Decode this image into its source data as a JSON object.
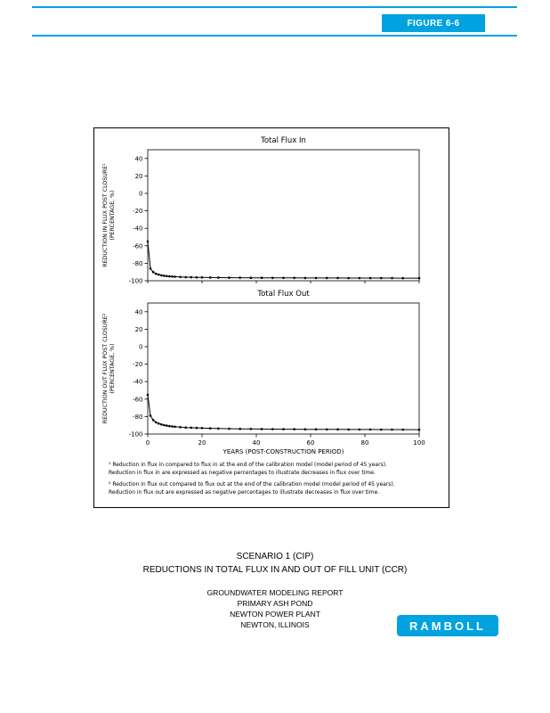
{
  "accent_color": "#00A3E0",
  "header": {
    "figure_label": "FIGURE 6-6"
  },
  "chart_data": [
    {
      "type": "line",
      "title": "Total Flux In",
      "ylabel_lines": [
        "REDUCTION IN FLUX POST CLOSURE¹",
        "(PERCENTAGE, %)"
      ],
      "xlabel": "",
      "xlim": [
        0,
        100
      ],
      "ylim": [
        -100,
        50
      ],
      "xticks": [
        0,
        20,
        40,
        60,
        80,
        100
      ],
      "yticks": [
        40,
        20,
        0,
        -20,
        -40,
        -60,
        -80,
        -100
      ],
      "grid": false,
      "legend": "none",
      "series": [
        {
          "name": "Total Flux In",
          "x": [
            0,
            1,
            2,
            3,
            4,
            5,
            6,
            7,
            8,
            9,
            10,
            12,
            14,
            16,
            18,
            20,
            23,
            26,
            30,
            34,
            38,
            42,
            46,
            50,
            54,
            58,
            62,
            66,
            70,
            74,
            78,
            82,
            86,
            90,
            94,
            100
          ],
          "y": [
            -55,
            -86,
            -90,
            -92,
            -93,
            -93.8,
            -94.3,
            -94.7,
            -95,
            -95.2,
            -95.4,
            -95.7,
            -95.9,
            -96,
            -96.1,
            -96.2,
            -96.3,
            -96.4,
            -96.5,
            -96.5,
            -96.6,
            -96.6,
            -96.7,
            -96.7,
            -96.7,
            -96.8,
            -96.8,
            -96.8,
            -96.8,
            -96.9,
            -96.9,
            -96.9,
            -96.9,
            -96.9,
            -97,
            -97
          ]
        }
      ]
    },
    {
      "type": "line",
      "title": "Total Flux Out",
      "ylabel_lines": [
        "REDUCTION OUT FLUX POST CLOSURE²",
        "(PERCENTAGE, %)"
      ],
      "xlabel": "YEARS (POST-CONSTRUCTION PERIOD)",
      "xlim": [
        0,
        100
      ],
      "ylim": [
        -100,
        50
      ],
      "xticks": [
        0,
        20,
        40,
        60,
        80,
        100
      ],
      "yticks": [
        40,
        20,
        0,
        -20,
        -40,
        -60,
        -80,
        -100
      ],
      "grid": false,
      "legend": "none",
      "series": [
        {
          "name": "Total Flux Out",
          "x": [
            0,
            1,
            2,
            3,
            4,
            5,
            6,
            7,
            8,
            9,
            10,
            12,
            14,
            16,
            18,
            20,
            23,
            26,
            30,
            34,
            38,
            42,
            46,
            50,
            54,
            58,
            62,
            66,
            70,
            74,
            78,
            82,
            86,
            90,
            94,
            100
          ],
          "y": [
            -55,
            -79,
            -84,
            -86.5,
            -88,
            -89,
            -89.8,
            -90.4,
            -90.9,
            -91.3,
            -91.6,
            -92.1,
            -92.5,
            -92.8,
            -93,
            -93.2,
            -93.5,
            -93.7,
            -93.9,
            -94.1,
            -94.2,
            -94.3,
            -94.4,
            -94.5,
            -94.5,
            -94.6,
            -94.6,
            -94.7,
            -94.7,
            -94.8,
            -94.8,
            -94.8,
            -94.9,
            -94.9,
            -94.9,
            -95
          ]
        }
      ]
    }
  ],
  "footnotes": {
    "note1": "¹ Reduction in flux in compared to flux in at the end of the calibration model (model period of 45 years). Reduction in flux in are expressed as negative percentages to illustrate decreases in flux over time.",
    "note2": "² Reduction in flux out compared to flux out at the end of the calibration model (model period of 45 years). Reduction in flux out are expressed as negative percentages to illustrate decreases in flux over time."
  },
  "captions": {
    "scenario": "SCENARIO 1 (CIP)",
    "title": "REDUCTIONS IN TOTAL FLUX IN AND OUT OF FILL UNIT (CCR)",
    "report": "GROUNDWATER MODELING REPORT",
    "site": "PRIMARY ASH POND",
    "plant": "NEWTON POWER PLANT",
    "location": "NEWTON, ILLINOIS"
  },
  "logo": {
    "text": "RAMBOLL"
  }
}
